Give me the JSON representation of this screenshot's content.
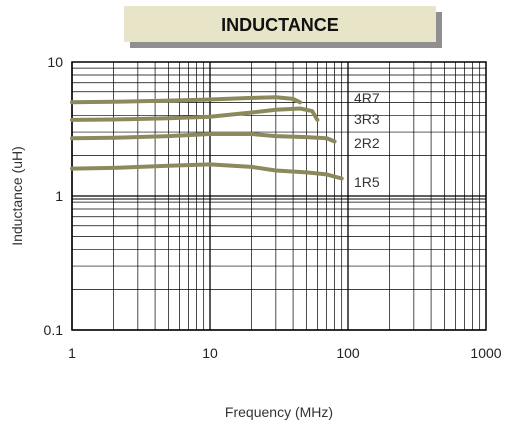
{
  "chart_data": {
    "type": "line",
    "title": "INDUCTANCE",
    "xlabel": "Frequency (MHz)",
    "ylabel": "Inductance (uH)",
    "x_scale": "log",
    "y_scale": "log",
    "xlim": [
      1,
      1000
    ],
    "ylim": [
      0.1,
      10
    ],
    "x_ticks": [
      "1",
      "10",
      "100",
      "1000"
    ],
    "y_ticks": [
      "10",
      "1",
      "0.1"
    ],
    "grid": true,
    "line_color": "#8c8a5c",
    "title_bg": "#e7e4c7",
    "series": [
      {
        "name": "4R7",
        "x": [
          1,
          2,
          5,
          10,
          20,
          30,
          40,
          45
        ],
        "y": [
          5.0,
          5.05,
          5.15,
          5.25,
          5.4,
          5.45,
          5.3,
          5.0
        ]
      },
      {
        "name": "3R3",
        "x": [
          1,
          2,
          5,
          10,
          20,
          30,
          45,
          55,
          60
        ],
        "y": [
          3.7,
          3.72,
          3.8,
          3.9,
          4.2,
          4.4,
          4.5,
          4.3,
          3.7
        ]
      },
      {
        "name": "2R2",
        "x": [
          1,
          2,
          5,
          10,
          20,
          30,
          50,
          70,
          80
        ],
        "y": [
          2.7,
          2.72,
          2.8,
          2.9,
          2.9,
          2.8,
          2.75,
          2.7,
          2.55
        ]
      },
      {
        "name": "1R5",
        "x": [
          1,
          2,
          5,
          10,
          20,
          30,
          50,
          70,
          90
        ],
        "y": [
          1.6,
          1.62,
          1.68,
          1.72,
          1.65,
          1.55,
          1.5,
          1.45,
          1.35
        ]
      }
    ]
  }
}
